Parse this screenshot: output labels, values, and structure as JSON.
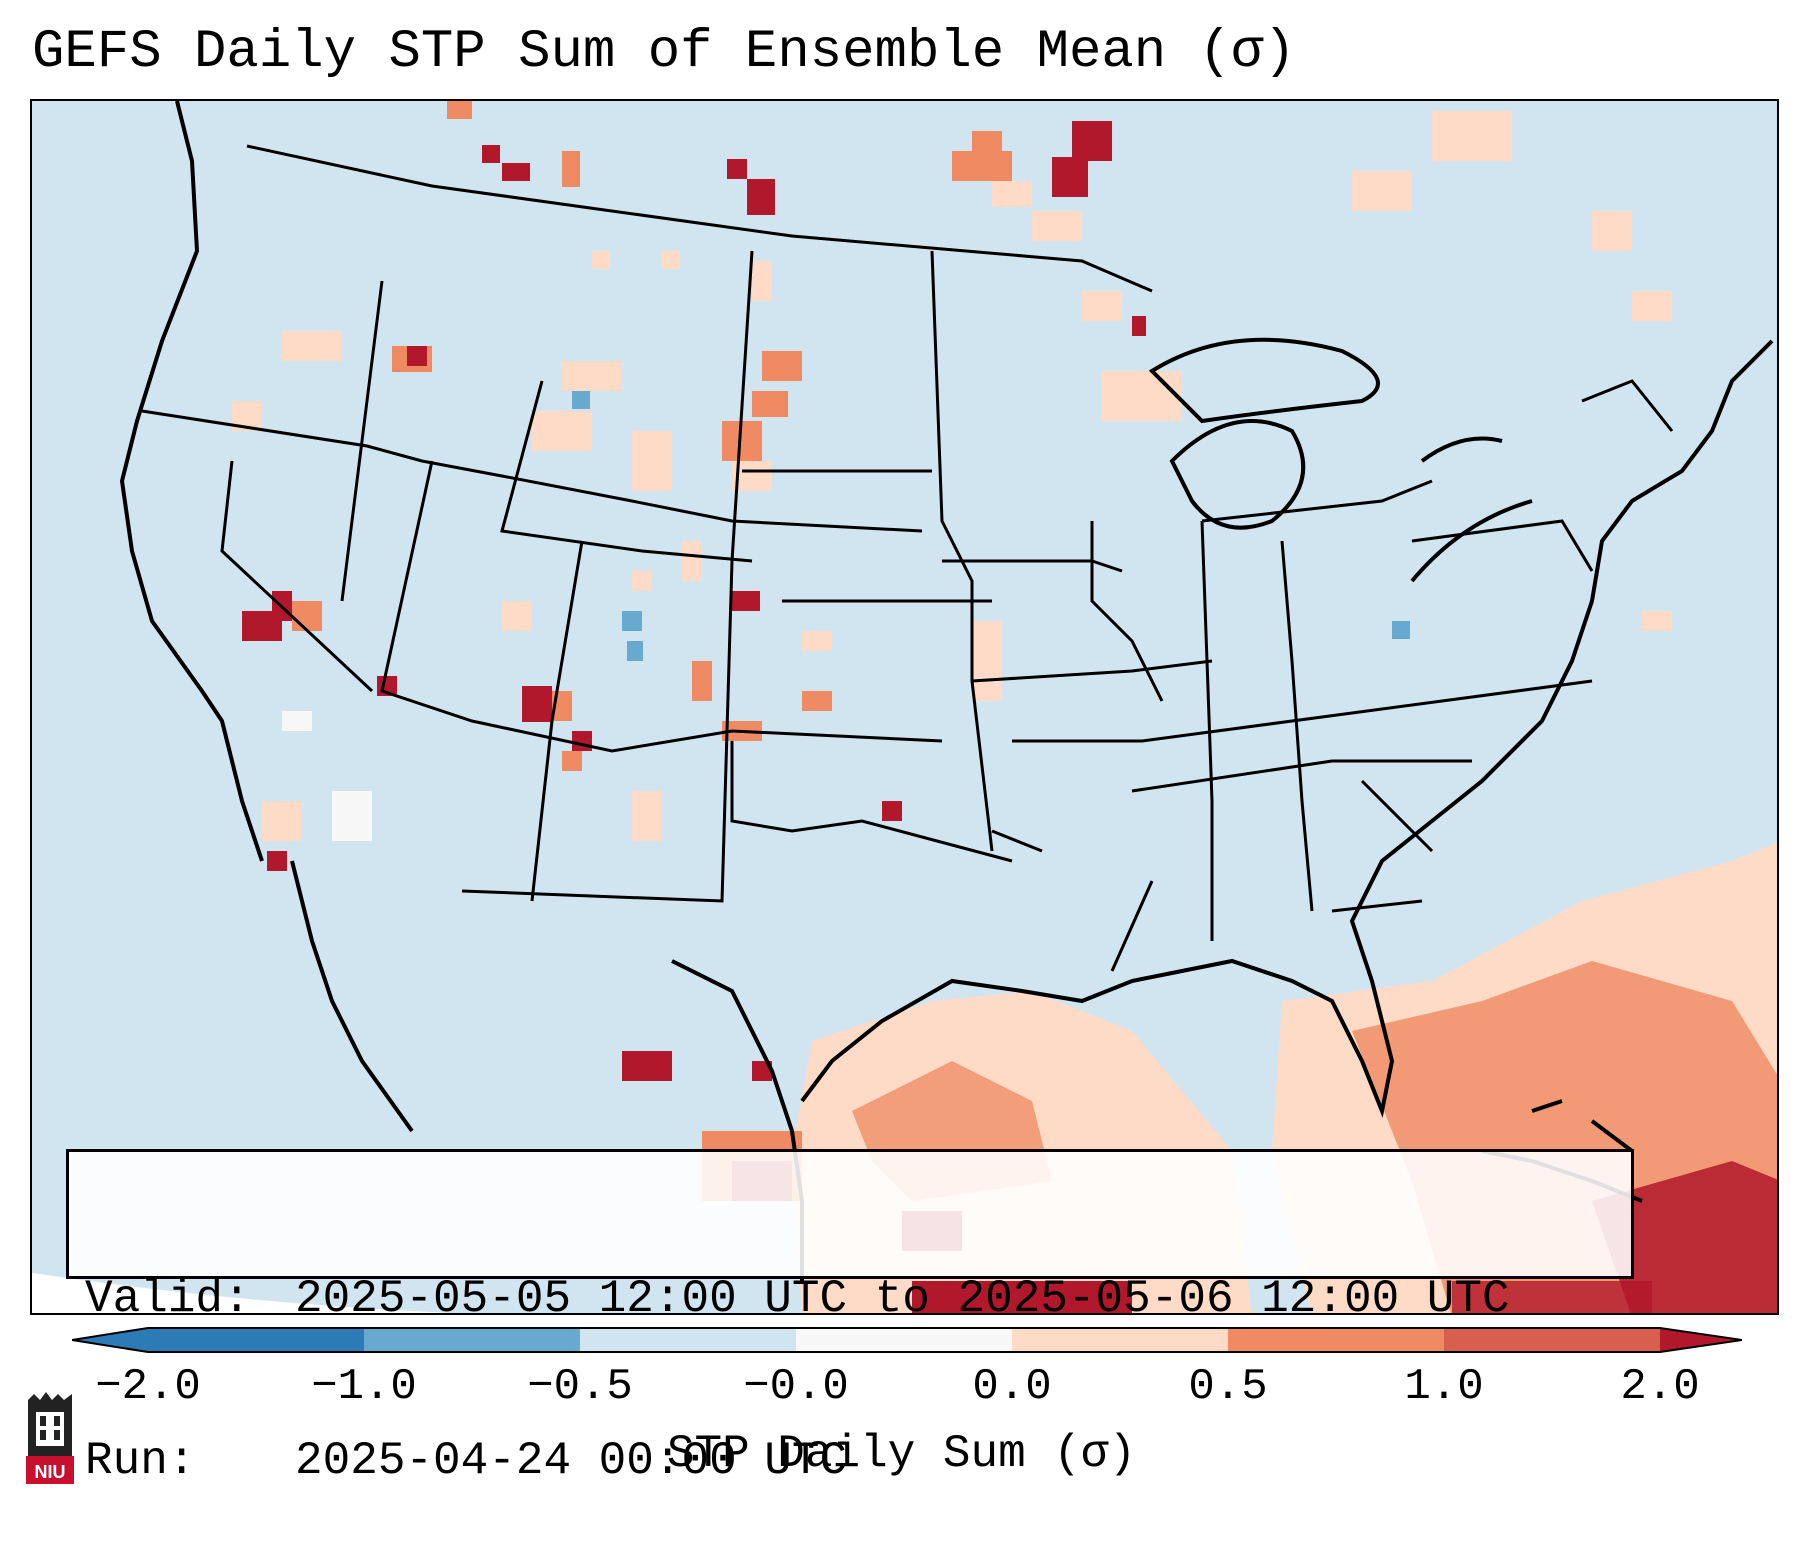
{
  "title": "GEFS Daily STP Sum of Ensemble Mean (σ)",
  "info": {
    "valid_label": "Valid:",
    "valid_value": "2025-05-05 12:00 UTC to 2025-05-06 12:00 UTC",
    "run_label": "Run:",
    "run_value": "2025-04-24 00:00 UTC"
  },
  "colorbar": {
    "label": "STP Daily Sum (σ)",
    "ticks": [
      "−2.0",
      "−1.0",
      "−0.5",
      "−0.0",
      "0.0",
      "0.5",
      "1.0",
      "2.0"
    ],
    "colors": [
      "#2c7bb6",
      "#67a9cf",
      "#d1e5f0",
      "#f7f7f7",
      "#fddbc7",
      "#ef8a62",
      "#b2182b"
    ],
    "ocean_color": "#d1e5f0",
    "land_color": "#d1e5f0"
  },
  "logo": {
    "text": "NIU",
    "icon": "niu-logo-icon"
  },
  "map": {
    "region": "Continental United States",
    "features": [
      "state boundaries",
      "coastlines",
      "Gulf of Mexico",
      "Great Lakes"
    ]
  }
}
